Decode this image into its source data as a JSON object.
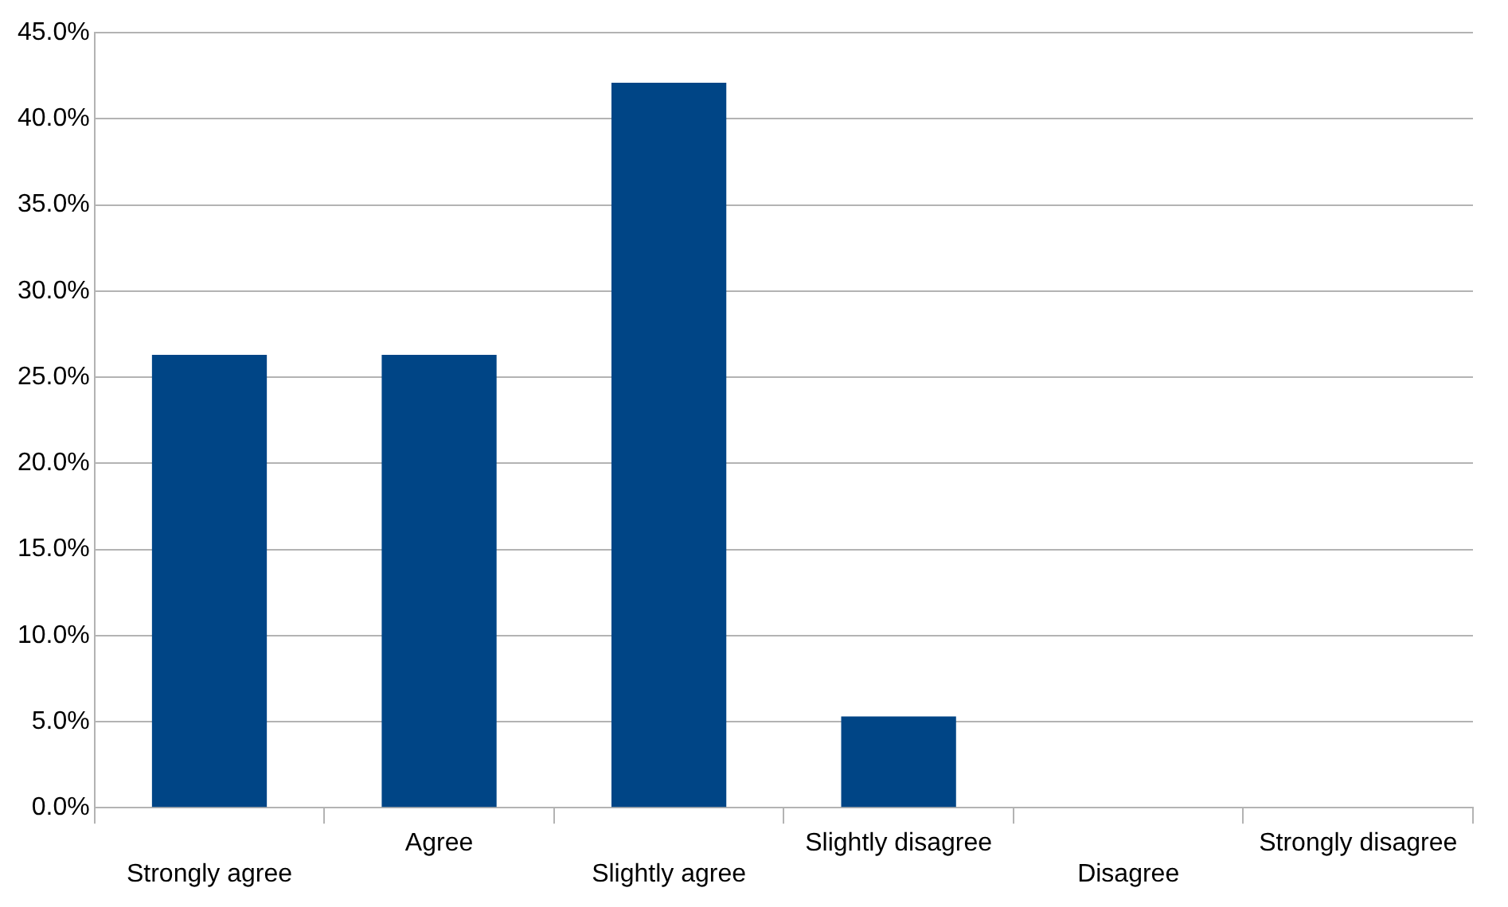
{
  "chart_data": {
    "type": "bar",
    "categories": [
      "Strongly agree",
      "Agree",
      "Slightly agree",
      "Slightly disagree",
      "Disagree",
      "Strongly disagree"
    ],
    "values": [
      26.3,
      26.3,
      42.1,
      5.3,
      0,
      0
    ],
    "color": "#004586",
    "ylim": [
      0,
      45
    ],
    "yticks": [
      {
        "value": 0,
        "label": "0.0%"
      },
      {
        "value": 5,
        "label": "5.0%"
      },
      {
        "value": 10,
        "label": "10.0%"
      },
      {
        "value": 15,
        "label": "15.0%"
      },
      {
        "value": 20,
        "label": "20.0%"
      },
      {
        "value": 25,
        "label": "25.0%"
      },
      {
        "value": 30,
        "label": "30.0%"
      },
      {
        "value": 35,
        "label": "35.0%"
      },
      {
        "value": 40,
        "label": "40.0%"
      },
      {
        "value": 45,
        "label": "45.0%"
      }
    ],
    "grid": "y",
    "legend": false
  }
}
